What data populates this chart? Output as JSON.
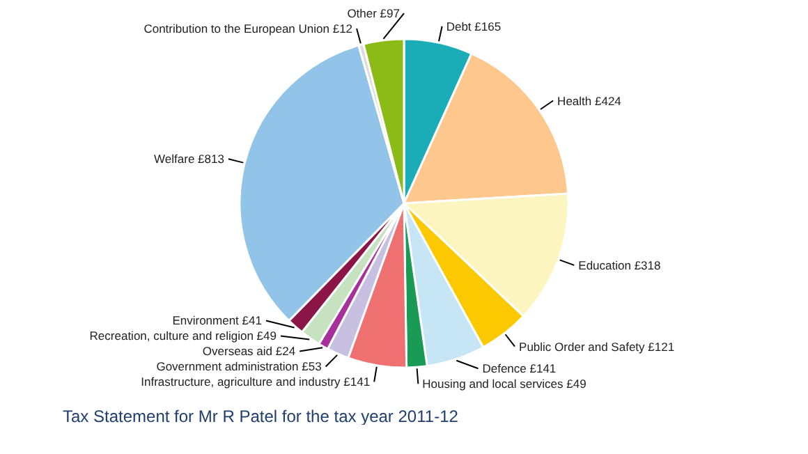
{
  "chart_data": {
    "type": "pie",
    "title": "Tax Statement for Mr R Patel for the tax year 2011-12",
    "categories": [
      "Debt",
      "Health",
      "Education",
      "Public Order and Safety",
      "Defence",
      "Housing and local services",
      "Infrastructure, agriculture and industry",
      "Government administration",
      "Overseas aid",
      "Recreation, culture and religion",
      "Environment",
      "Welfare",
      "Contribution to the European Union",
      "Other"
    ],
    "values": [
      165,
      424,
      318,
      121,
      141,
      49,
      141,
      53,
      24,
      49,
      41,
      813,
      12,
      97
    ],
    "value_labels": [
      "£165",
      "£424",
      "£318",
      "£121",
      "£141",
      "£49",
      "£141",
      "£53",
      "£24",
      "£49",
      "£41",
      "£813",
      "£12",
      "£97"
    ],
    "colors": [
      "#1aadb8",
      "#fdc78e",
      "#fdf5c0",
      "#fcc900",
      "#c6e6f5",
      "#1a9b55",
      "#ef7070",
      "#c8c0e0",
      "#a8309a",
      "#c6e2c0",
      "#8c1548",
      "#92c4ea",
      "#dcdcdc",
      "#8cbb18"
    ]
  }
}
